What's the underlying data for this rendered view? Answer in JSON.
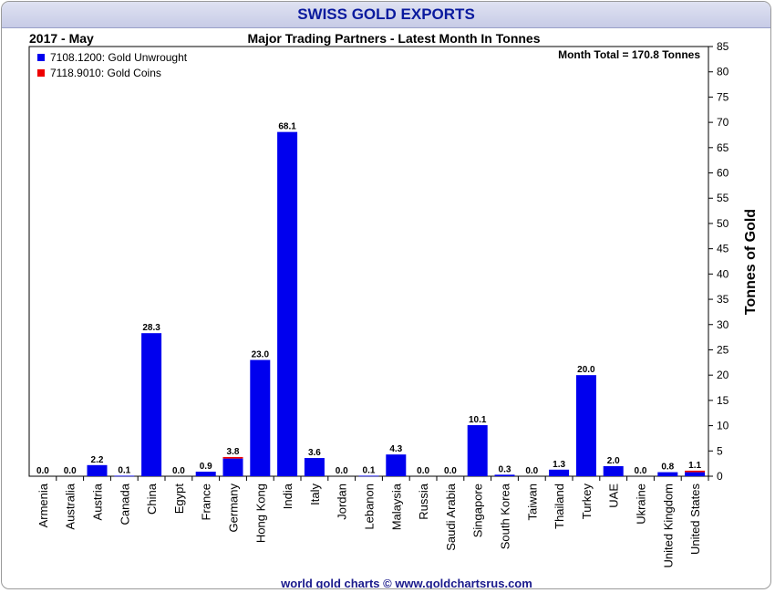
{
  "banner_title": "SWISS GOLD EXPORTS",
  "period_label": "2017 - May",
  "subtitle": "Major Trading Partners - Latest Month In Tonnes",
  "month_total": "Month Total = 170.8 Tonnes",
  "footer": "world gold charts © www.goldchartsrus.com",
  "colors": {
    "unwrought": "#0000ee",
    "coins": "#ee0000",
    "banner_text": "#0a1a9e"
  },
  "chart_data": {
    "type": "bar",
    "stacked": true,
    "categories": [
      "Armenia",
      "Australia",
      "Austria",
      "Canada",
      "China",
      "Egypt",
      "France",
      "Germany",
      "Hong Kong",
      "India",
      "Italy",
      "Jordan",
      "Lebanon",
      "Malaysia",
      "Russia",
      "Saudi Arabia",
      "Singapore",
      "South Korea",
      "Taiwan",
      "Thailand",
      "Turkey",
      "UAE",
      "Ukraine",
      "United Kingdom",
      "United States"
    ],
    "series": [
      {
        "name": "7108.1200: Gold Unwrought",
        "color": "#0000ee",
        "values": [
          0.0,
          0.0,
          2.2,
          0.1,
          28.3,
          0.0,
          0.9,
          3.5,
          23.0,
          68.1,
          3.6,
          0.0,
          0.1,
          4.3,
          0.0,
          0.0,
          10.1,
          0.3,
          0.0,
          1.3,
          20.0,
          2.0,
          0.0,
          0.8,
          0.8
        ]
      },
      {
        "name": "7118.9010: Gold Coins",
        "color": "#ee0000",
        "values": [
          0,
          0,
          0,
          0,
          0,
          0,
          0,
          0.3,
          0,
          0,
          0,
          0,
          0,
          0,
          0,
          0,
          0,
          0,
          0,
          0,
          0,
          0,
          0,
          0,
          0.3
        ]
      }
    ],
    "totals_labels": [
      "0.0",
      "0.0",
      "2.2",
      "0.1",
      "28.3",
      "0.0",
      "0.9",
      "3.8",
      "23.0",
      "68.1",
      "3.6",
      "0.0",
      "0.1",
      "4.3",
      "0.0",
      "0.0",
      "10.1",
      "0.3",
      "0.0",
      "1.3",
      "20.0",
      "2.0",
      "0.0",
      "0.8",
      "1.1"
    ],
    "ylabel": "Tonnes of Gold",
    "ylim": [
      0,
      85
    ],
    "yticks": [
      0,
      5,
      10,
      15,
      20,
      25,
      30,
      35,
      40,
      45,
      50,
      55,
      60,
      65,
      70,
      75,
      80,
      85
    ],
    "y_axis_side": "right",
    "grid": false,
    "legend_position": "top-left"
  }
}
